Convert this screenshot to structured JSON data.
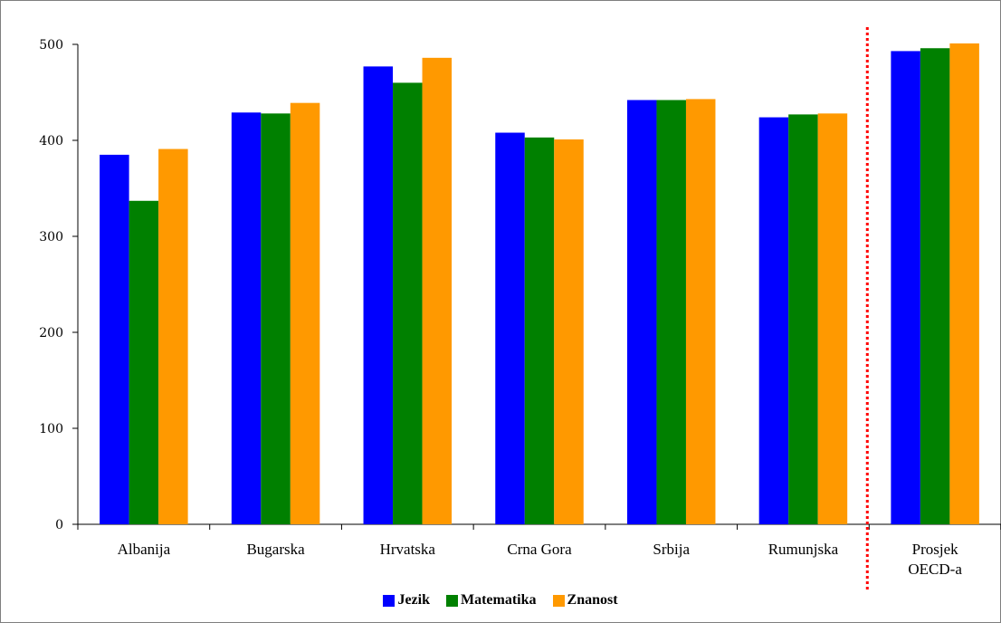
{
  "chart_data": {
    "type": "bar",
    "categories": [
      [
        "Albanija"
      ],
      [
        "Bugarska"
      ],
      [
        "Hrvatska"
      ],
      [
        "Crna Gora"
      ],
      [
        "Srbija"
      ],
      [
        "Rumunjska"
      ],
      [
        "Prosjek",
        "OECD-a"
      ]
    ],
    "series": [
      {
        "name": "Jezik",
        "color": "#0000ff",
        "values": [
          385,
          429,
          477,
          408,
          442,
          424,
          493
        ]
      },
      {
        "name": "Matematika",
        "color": "#008000",
        "values": [
          337,
          428,
          460,
          403,
          442,
          427,
          496
        ]
      },
      {
        "name": "Znanost",
        "color": "#ff9900",
        "values": [
          391,
          439,
          486,
          401,
          443,
          428,
          501
        ]
      }
    ],
    "yticks": [
      "0",
      "100",
      "200",
      "300",
      "400",
      "500"
    ],
    "ylim": [
      0,
      500
    ],
    "grid": false,
    "legend_position": "bottom",
    "separator": {
      "after_category_index": 5,
      "style": "dotted",
      "color": "#ff0000"
    }
  }
}
